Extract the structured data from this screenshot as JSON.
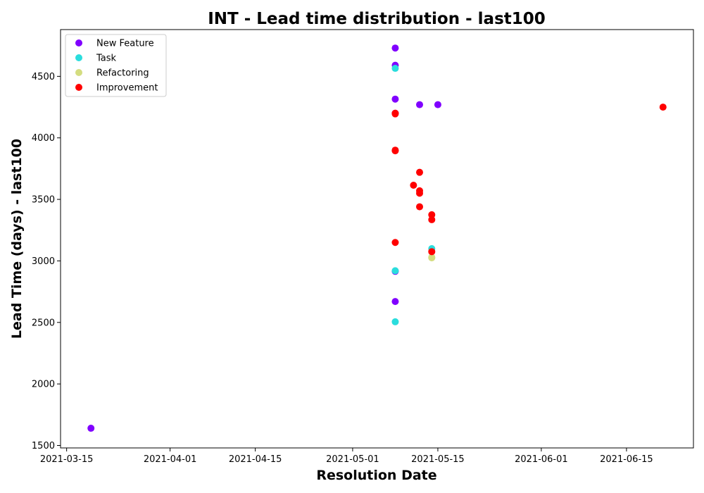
{
  "chart_data": {
    "type": "scatter",
    "title": "INT - Lead time distribution - last100",
    "xlabel": "Resolution Date",
    "ylabel": "Lead Time (days) - last100",
    "xlim": [
      "2021-03-14",
      "2021-06-26"
    ],
    "ylim": [
      1480,
      4880
    ],
    "x_ticks": [
      "2021-03-15",
      "2021-04-01",
      "2021-04-15",
      "2021-05-01",
      "2021-05-15",
      "2021-06-01",
      "2021-06-15"
    ],
    "y_ticks": [
      1500,
      2000,
      2500,
      3000,
      3500,
      4000,
      4500
    ],
    "grid": false,
    "legend_position": "upper-left",
    "series": [
      {
        "name": "New Feature",
        "color": "#8000ff",
        "points": [
          {
            "x": "2021-03-19",
            "y": 1640
          },
          {
            "x": "2021-05-08",
            "y": 4730
          },
          {
            "x": "2021-05-08",
            "y": 4590
          },
          {
            "x": "2021-05-08",
            "y": 4315
          },
          {
            "x": "2021-05-08",
            "y": 4200
          },
          {
            "x": "2021-05-08",
            "y": 2915
          },
          {
            "x": "2021-05-08",
            "y": 2670
          },
          {
            "x": "2021-05-12",
            "y": 4270
          },
          {
            "x": "2021-05-15",
            "y": 4270
          }
        ]
      },
      {
        "name": "Task",
        "color": "#2adddd",
        "points": [
          {
            "x": "2021-05-08",
            "y": 4565
          },
          {
            "x": "2021-05-08",
            "y": 2920
          },
          {
            "x": "2021-05-08",
            "y": 2505
          },
          {
            "x": "2021-05-14",
            "y": 3100
          }
        ]
      },
      {
        "name": "Refactoring",
        "color": "#d4dd80",
        "points": [
          {
            "x": "2021-05-14",
            "y": 3030
          },
          {
            "x": "2021-05-14",
            "y": 3025
          }
        ]
      },
      {
        "name": "Improvement",
        "color": "#ff0000",
        "points": [
          {
            "x": "2021-05-08",
            "y": 4195
          },
          {
            "x": "2021-05-08",
            "y": 4200
          },
          {
            "x": "2021-05-08",
            "y": 3900
          },
          {
            "x": "2021-05-08",
            "y": 3895
          },
          {
            "x": "2021-05-08",
            "y": 3150
          },
          {
            "x": "2021-05-11",
            "y": 3615
          },
          {
            "x": "2021-05-12",
            "y": 3720
          },
          {
            "x": "2021-05-12",
            "y": 3570
          },
          {
            "x": "2021-05-12",
            "y": 3550
          },
          {
            "x": "2021-05-12",
            "y": 3440
          },
          {
            "x": "2021-05-14",
            "y": 3375
          },
          {
            "x": "2021-05-14",
            "y": 3335
          },
          {
            "x": "2021-05-14",
            "y": 3075
          },
          {
            "x": "2021-06-21",
            "y": 4250
          }
        ]
      }
    ]
  }
}
